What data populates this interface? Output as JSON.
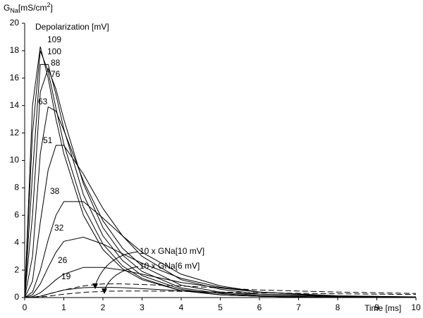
{
  "chart_data": {
    "type": "line",
    "y_label": {
      "text": "G",
      "sub": "Na",
      "rest": "[mS/cm",
      "sup": "2",
      "end": "]"
    },
    "x_label": "Time  [ms]",
    "annotation": "Depolarization  [mV]",
    "x": [
      0,
      0.2,
      0.4,
      0.6,
      0.8,
      1,
      1.5,
      2,
      2.5,
      3,
      4,
      5,
      6,
      8,
      10
    ],
    "xlim": [
      0,
      10
    ],
    "xticks": [
      0,
      1,
      2,
      3,
      4,
      5,
      6,
      7,
      8,
      9,
      10
    ],
    "ylim": [
      0,
      20
    ],
    "yticks": [
      0,
      2,
      4,
      6,
      8,
      10,
      12,
      14,
      16,
      18,
      20
    ],
    "series": [
      {
        "name": "109",
        "color": "#000000",
        "values": [
          0,
          14,
          18.3,
          16,
          13,
          10.5,
          6,
          3.5,
          2.1,
          1.3,
          0.5,
          0.2,
          0.1,
          0,
          0
        ]
      },
      {
        "name": "100",
        "color": "#000000",
        "values": [
          0,
          12,
          18,
          16.5,
          13.8,
          11.2,
          6.6,
          3.9,
          2.3,
          1.4,
          0.5,
          0.2,
          0.1,
          0,
          0
        ]
      },
      {
        "name": "88",
        "color": "#000000",
        "values": [
          0,
          9,
          17,
          17,
          14.8,
          12.3,
          7.5,
          4.5,
          2.7,
          1.6,
          0.6,
          0.2,
          0.1,
          0,
          0
        ]
      },
      {
        "name": "76",
        "color": "#000000",
        "values": [
          0,
          6,
          15,
          16.7,
          15.2,
          13,
          8.3,
          5.1,
          3.1,
          1.9,
          0.7,
          0.3,
          0.1,
          0,
          0
        ]
      },
      {
        "name": "63",
        "color": "#000000",
        "values": [
          0,
          3,
          10.5,
          13.9,
          13.6,
          12.2,
          8.5,
          5.6,
          3.6,
          2.3,
          0.9,
          0.4,
          0.15,
          0.02,
          0
        ]
      },
      {
        "name": "51",
        "color": "#000000",
        "values": [
          0,
          1.2,
          5.5,
          9.3,
          11.1,
          11.1,
          9,
          6.5,
          4.5,
          3,
          1.3,
          0.6,
          0.25,
          0.05,
          0
        ]
      },
      {
        "name": "38",
        "color": "#000000",
        "values": [
          0,
          0.4,
          2,
          4.2,
          6,
          7,
          7,
          5.8,
          4.5,
          3.3,
          1.7,
          0.85,
          0.4,
          0.1,
          0.02
        ]
      },
      {
        "name": "32",
        "color": "#000000",
        "values": [
          0,
          0.2,
          1,
          2.2,
          3.3,
          4.1,
          4.4,
          3.9,
          3.2,
          2.5,
          1.4,
          0.75,
          0.4,
          0.1,
          0.03
        ]
      },
      {
        "name": "26",
        "color": "#000000",
        "values": [
          0,
          0.07,
          0.35,
          0.8,
          1.3,
          1.7,
          2.2,
          2.2,
          2,
          1.7,
          1.1,
          0.7,
          0.4,
          0.13,
          0.04
        ]
      },
      {
        "name": "19",
        "color": "#000000",
        "values": [
          0,
          0.02,
          0.1,
          0.25,
          0.4,
          0.55,
          0.72,
          0.75,
          0.72,
          0.65,
          0.5,
          0.35,
          0.25,
          0.12,
          0.05
        ]
      },
      {
        "name": "10 x GNa[10 mV]",
        "color": "#000000",
        "dashed": true,
        "values": [
          0,
          0.02,
          0.1,
          0.25,
          0.4,
          0.55,
          0.85,
          1,
          1,
          0.95,
          0.85,
          0.7,
          0.55,
          0.4,
          0.3
        ]
      },
      {
        "name": "10 x GNa[6 mV]",
        "color": "#000000",
        "dashed": true,
        "values": [
          0,
          0.01,
          0.05,
          0.1,
          0.17,
          0.24,
          0.38,
          0.45,
          0.48,
          0.48,
          0.45,
          0.4,
          0.35,
          0.27,
          0.22
        ]
      }
    ]
  }
}
